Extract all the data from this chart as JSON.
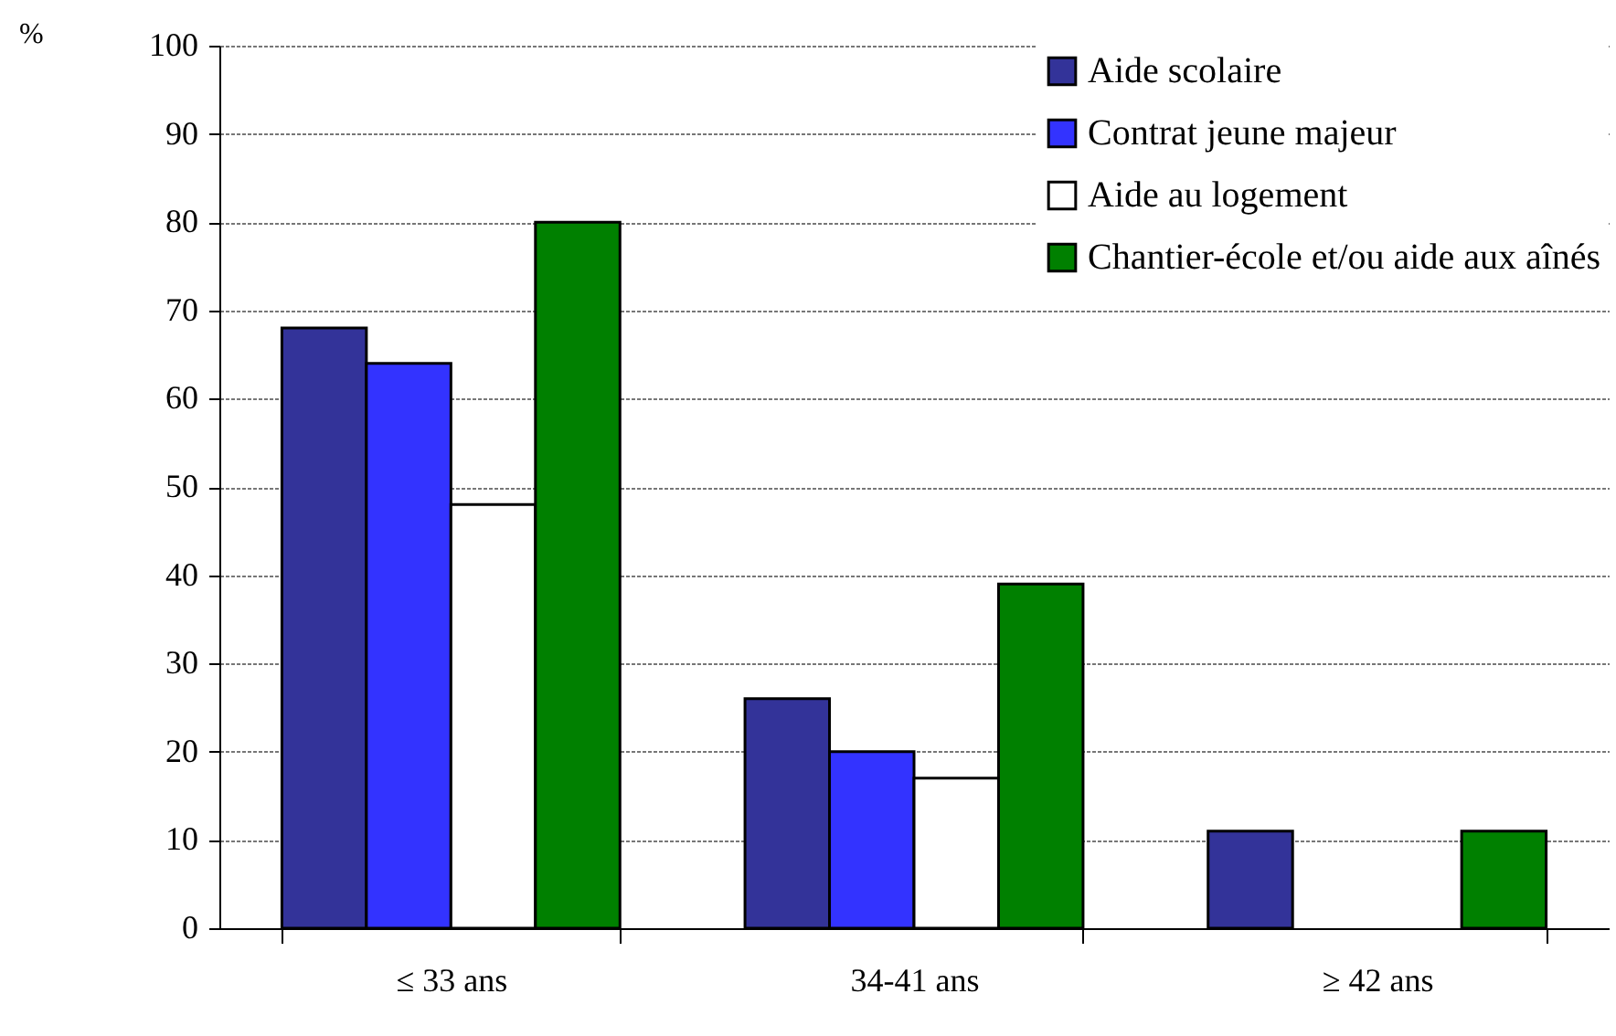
{
  "chart_data": {
    "type": "bar",
    "ylabel": "%",
    "categories": [
      "≤ 33 ans",
      "34-41 ans",
      "≥ 42 ans"
    ],
    "series": [
      {
        "name": "Aide scolaire",
        "color": "#333399",
        "values": [
          68,
          26,
          11
        ]
      },
      {
        "name": "Contrat jeune majeur",
        "color": "#3333ff",
        "values": [
          64,
          20,
          null
        ]
      },
      {
        "name": "Aide au logement",
        "color": "#ffffff",
        "values": [
          48,
          17,
          null
        ]
      },
      {
        "name": "Chantier-école et/ou aide aux aînés",
        "color": "#008000",
        "values": [
          80,
          39,
          11
        ]
      }
    ],
    "ylim": [
      0,
      100
    ],
    "yticks": [
      0,
      10,
      20,
      30,
      40,
      50,
      60,
      70,
      80,
      90,
      100
    ],
    "grid": "y",
    "legend": "top right"
  }
}
